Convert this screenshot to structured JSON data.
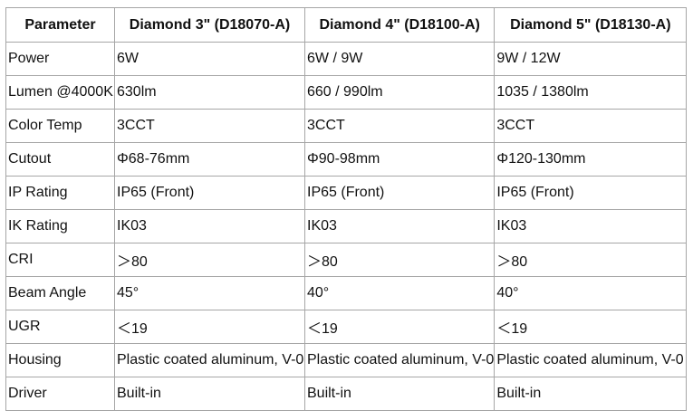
{
  "table": {
    "header": [
      "Parameter",
      "Diamond 3\" (D18070-A)",
      "Diamond 4\" (D18100-A)",
      "Diamond 5\" (D18130-A)"
    ],
    "rows": [
      [
        "Power",
        "6W",
        "6W / 9W",
        "9W / 12W"
      ],
      [
        "Lumen @4000K",
        "630lm",
        "660 / 990lm",
        "1035 / 1380lm"
      ],
      [
        "Color Temp",
        "3CCT",
        "3CCT",
        "3CCT"
      ],
      [
        "Cutout",
        "Φ68-76mm",
        "Φ90-98mm",
        "Φ120-130mm"
      ],
      [
        "IP Rating",
        "IP65 (Front)",
        "IP65 (Front)",
        "IP65 (Front)"
      ],
      [
        "IK Rating",
        "IK03",
        "IK03",
        "IK03"
      ],
      [
        "CRI",
        "＞80",
        "＞80",
        "＞80"
      ],
      [
        "Beam Angle",
        "45°",
        "40°",
        "40°"
      ],
      [
        "UGR",
        "＜19",
        "＜19",
        "＜19"
      ],
      [
        "Housing",
        "Plastic coated aluminum, V-0",
        "Plastic coated aluminum, V-0",
        "Plastic coated aluminum, V-0"
      ],
      [
        "Driver",
        "Built-in",
        "Built-in",
        "Built-in"
      ]
    ]
  }
}
